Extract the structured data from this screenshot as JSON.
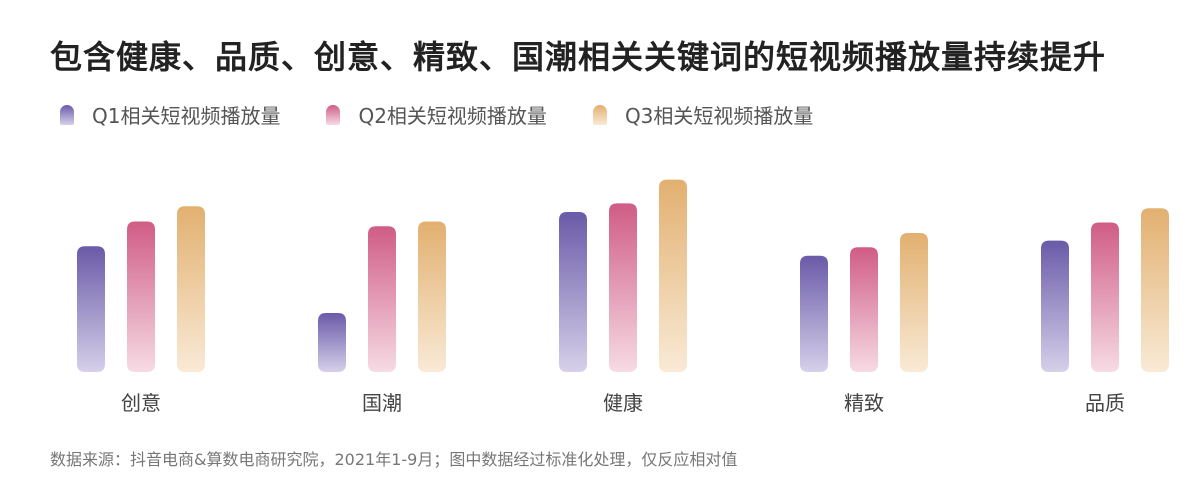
{
  "title": "包含健康、品质、创意、精致、国潮相关关键词的短视频播放量持续提升",
  "source": "数据来源：抖音电商&算数电商研究院，2021年1-9月；图中数据经过标准化处理，仅反应相对值",
  "colors": {
    "Q1": [
      "#6a5aa8",
      "#d6d0ea"
    ],
    "Q2": [
      "#d05c86",
      "#f6dbe4"
    ],
    "Q3": [
      "#e2b070",
      "#f9ead6"
    ]
  },
  "chart_data": {
    "type": "bar",
    "categories": [
      "创意",
      "国潮",
      "健康",
      "精致",
      "品质"
    ],
    "series": [
      {
        "name": "Q1相关短视频播放量",
        "values": [
          132,
          62,
          168,
          122,
          138
        ]
      },
      {
        "name": "Q2相关短视频播放量",
        "values": [
          158,
          153,
          177,
          131,
          157
        ]
      },
      {
        "name": "Q3相关短视频播放量",
        "values": [
          174,
          158,
          202,
          146,
          172
        ]
      }
    ],
    "ylim": [
      0,
      210
    ],
    "grid": false,
    "legend_position": "top-left"
  }
}
